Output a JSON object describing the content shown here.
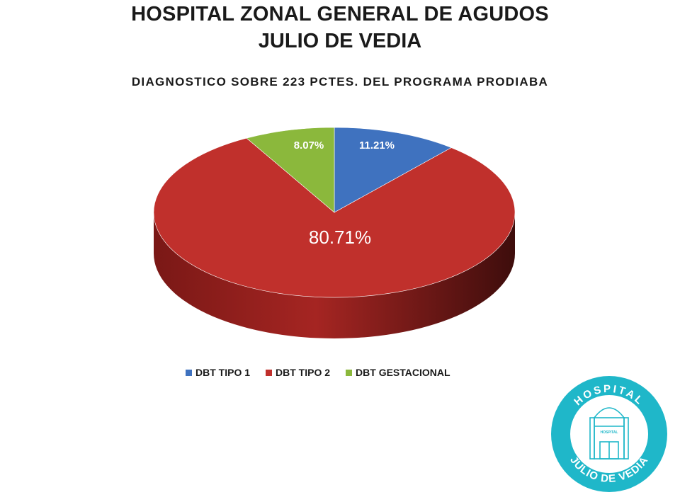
{
  "header": {
    "title_line1": "HOSPITAL ZONAL GENERAL DE AGUDOS",
    "title_line2": "JULIO DE VEDIA",
    "subtitle": "DIAGNOSTICO SOBRE 223 PCTES. DEL PROGRAMA PRODIABA"
  },
  "chart_data": {
    "type": "pie",
    "title": "DIAGNOSTICO SOBRE 223 PCTES. DEL PROGRAMA PRODIABA",
    "categories": [
      "DBT TIPO 1",
      "DBT TIPO 2",
      "DBT GESTACIONAL"
    ],
    "values": [
      11.21,
      80.71,
      8.07
    ],
    "labels": [
      "11.21%",
      "80.71%",
      "8.07%"
    ],
    "colors": [
      "#3f72bf",
      "#c0302c",
      "#8bb83c"
    ],
    "legend_position": "bottom"
  },
  "logo": {
    "top_text": "HOSPITAL",
    "bottom_text": "JULIO DE VEDIA",
    "color": "#1fb7c9"
  }
}
